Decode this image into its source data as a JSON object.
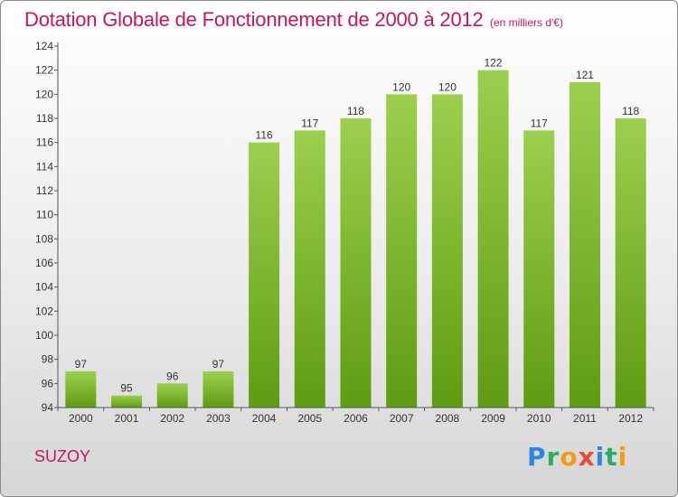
{
  "header": {
    "title": "Dotation Globale de Fonctionnement de 2000 à 2012",
    "subtitle": "(en milliers d'€)"
  },
  "footer": {
    "commune": "SUZOY",
    "logo_letters": [
      {
        "ch": "P",
        "color": "#2e86de"
      },
      {
        "ch": "r",
        "color": "#27ae60"
      },
      {
        "ch": "o",
        "color": "#f39c12"
      },
      {
        "ch": "x",
        "color": "#e74c3c"
      },
      {
        "ch": "i",
        "color": "#2e86de"
      },
      {
        "ch": "t",
        "color": "#27ae60"
      },
      {
        "ch": "i",
        "color": "#f39c12"
      }
    ]
  },
  "colors": {
    "title": "#c2185b",
    "bar_top": "#9ccf4e",
    "bar_bottom": "#5f9c12",
    "axis": "#555555"
  },
  "chart_data": {
    "type": "bar",
    "categories": [
      "2000",
      "2001",
      "2002",
      "2003",
      "2004",
      "2005",
      "2006",
      "2007",
      "2008",
      "2009",
      "2010",
      "2011",
      "2012"
    ],
    "values": [
      97,
      95,
      96,
      97,
      116,
      117,
      118,
      120,
      120,
      122,
      117,
      121,
      118
    ],
    "ylim": [
      94,
      124
    ],
    "yticks": [
      94,
      96,
      98,
      100,
      102,
      104,
      106,
      108,
      110,
      112,
      114,
      116,
      118,
      120,
      122,
      124
    ],
    "grid": false,
    "legend": "none"
  }
}
